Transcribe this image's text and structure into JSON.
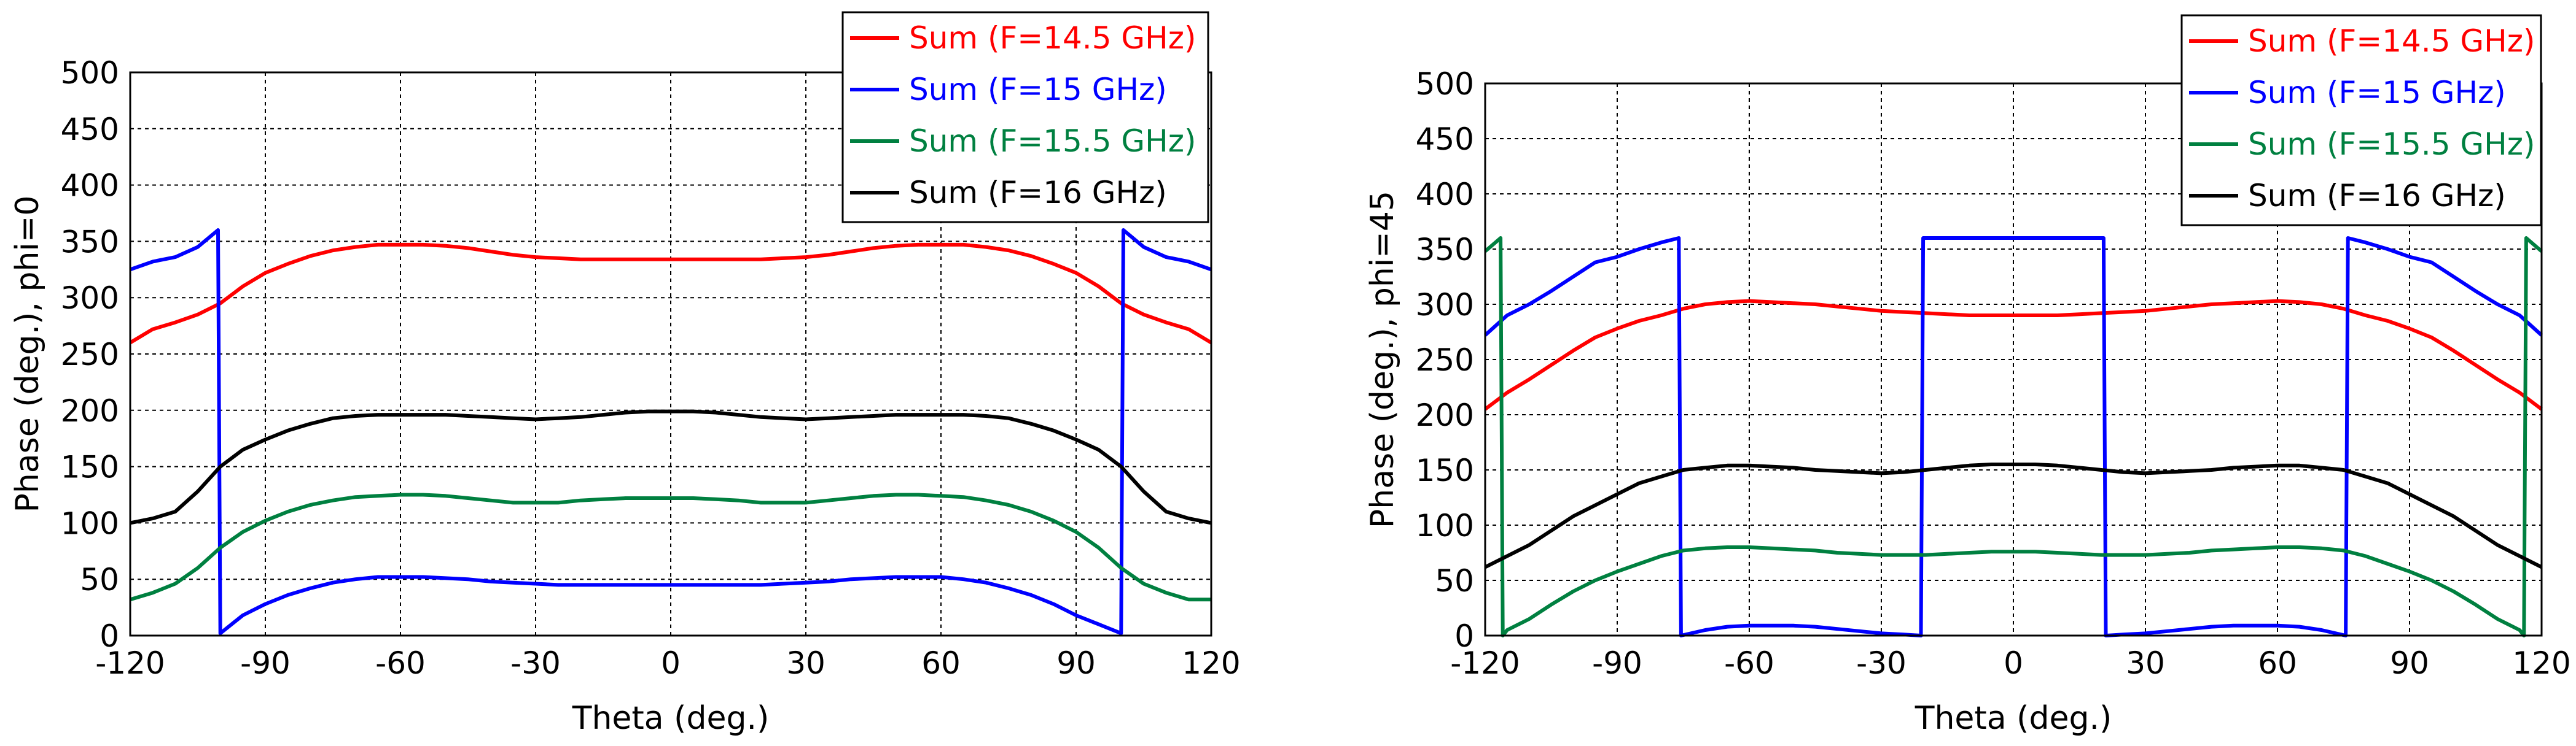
{
  "chart_data": [
    {
      "type": "line",
      "xlabel": "Theta (deg.)",
      "ylabel": "Phase (deg.), phi=0",
      "xlim": [
        -120,
        120
      ],
      "ylim": [
        0,
        500
      ],
      "xticks": [
        -120,
        -90,
        -60,
        -30,
        0,
        30,
        60,
        90,
        120
      ],
      "yticks": [
        0,
        50,
        100,
        150,
        200,
        250,
        300,
        350,
        400,
        450,
        500
      ],
      "grid": true,
      "legend_position": "top-right",
      "series": [
        {
          "name": "Sum (F=14.5 GHz)",
          "color": "#ff0000",
          "x": [
            -120,
            -115,
            -110,
            -105,
            -100,
            -95,
            -90,
            -85,
            -80,
            -75,
            -70,
            -65,
            -60,
            -55,
            -50,
            -45,
            -40,
            -35,
            -30,
            -25,
            -20,
            -15,
            -10,
            -5,
            0,
            5,
            10,
            15,
            20,
            25,
            30,
            35,
            40,
            45,
            50,
            55,
            60,
            65,
            70,
            75,
            80,
            85,
            90,
            95,
            100,
            105,
            110,
            115,
            120
          ],
          "y": [
            260,
            272,
            278,
            285,
            295,
            310,
            322,
            330,
            337,
            342,
            345,
            347,
            347,
            347,
            346,
            344,
            341,
            338,
            336,
            335,
            334,
            334,
            334,
            334,
            334,
            334,
            334,
            334,
            334,
            335,
            336,
            338,
            341,
            344,
            346,
            347,
            347,
            347,
            345,
            342,
            337,
            330,
            322,
            310,
            295,
            285,
            278,
            272,
            260
          ]
        },
        {
          "name": "Sum (F=15 GHz)",
          "color": "#0000ff",
          "x": [
            -120,
            -115,
            -110,
            -105,
            -100.5,
            -100,
            -95,
            -90,
            -85,
            -80,
            -75,
            -70,
            -65,
            -60,
            -55,
            -50,
            -45,
            -40,
            -35,
            -30,
            -25,
            -20,
            -15,
            -10,
            -5,
            0,
            5,
            10,
            15,
            20,
            25,
            30,
            35,
            40,
            45,
            50,
            55,
            60,
            65,
            70,
            75,
            80,
            85,
            90,
            95,
            100,
            100.5,
            105,
            110,
            115,
            120
          ],
          "y": [
            325,
            332,
            336,
            345,
            360,
            2,
            18,
            28,
            36,
            42,
            47,
            50,
            52,
            52,
            52,
            51,
            50,
            48,
            47,
            46,
            45,
            45,
            45,
            45,
            45,
            45,
            45,
            45,
            45,
            45,
            46,
            47,
            48,
            50,
            51,
            52,
            52,
            52,
            50,
            47,
            42,
            36,
            28,
            18,
            10,
            2,
            360,
            345,
            336,
            332,
            325
          ]
        },
        {
          "name": "Sum (F=15.5 GHz)",
          "color": "#008040",
          "x": [
            -120,
            -115,
            -110,
            -105,
            -100,
            -95,
            -90,
            -85,
            -80,
            -75,
            -70,
            -65,
            -60,
            -55,
            -50,
            -45,
            -40,
            -35,
            -30,
            -25,
            -20,
            -15,
            -10,
            -5,
            0,
            5,
            10,
            15,
            20,
            25,
            30,
            35,
            40,
            45,
            50,
            55,
            60,
            65,
            70,
            75,
            80,
            85,
            90,
            95,
            100,
            105,
            110,
            115,
            120
          ],
          "y": [
            32,
            38,
            46,
            60,
            78,
            92,
            102,
            110,
            116,
            120,
            123,
            124,
            125,
            125,
            124,
            122,
            120,
            118,
            118,
            118,
            120,
            121,
            122,
            122,
            122,
            122,
            121,
            120,
            118,
            118,
            118,
            120,
            122,
            124,
            125,
            125,
            124,
            123,
            120,
            116,
            110,
            102,
            92,
            78,
            60,
            46,
            38,
            32,
            32
          ]
        },
        {
          "name": "Sum (F=16 GHz)",
          "color": "#000000",
          "x": [
            -120,
            -115,
            -110,
            -105,
            -100,
            -95,
            -90,
            -85,
            -80,
            -75,
            -70,
            -65,
            -60,
            -55,
            -50,
            -45,
            -40,
            -35,
            -30,
            -25,
            -20,
            -15,
            -10,
            -5,
            0,
            5,
            10,
            15,
            20,
            25,
            30,
            35,
            40,
            45,
            50,
            55,
            60,
            65,
            70,
            75,
            80,
            85,
            90,
            95,
            100,
            105,
            110,
            115,
            120
          ],
          "y": [
            100,
            104,
            110,
            128,
            150,
            165,
            174,
            182,
            188,
            193,
            195,
            196,
            196,
            196,
            196,
            195,
            194,
            193,
            192,
            193,
            194,
            196,
            198,
            199,
            199,
            199,
            198,
            196,
            194,
            193,
            192,
            193,
            194,
            195,
            196,
            196,
            196,
            196,
            195,
            193,
            188,
            182,
            174,
            165,
            150,
            128,
            110,
            104,
            100
          ]
        }
      ]
    },
    {
      "type": "line",
      "xlabel": "Theta (deg.)",
      "ylabel": "Phase (deg.), phi=45",
      "xlim": [
        -120,
        120
      ],
      "ylim": [
        0,
        500
      ],
      "xticks": [
        -120,
        -90,
        -60,
        -30,
        0,
        30,
        60,
        90,
        120
      ],
      "yticks": [
        0,
        50,
        100,
        150,
        200,
        250,
        300,
        350,
        400,
        450,
        500
      ],
      "grid": true,
      "legend_position": "top-right",
      "series": [
        {
          "name": "Sum (F=14.5 GHz)",
          "color": "#ff0000",
          "x": [
            -120,
            -115,
            -110,
            -105,
            -100,
            -95,
            -90,
            -85,
            -80,
            -75,
            -70,
            -65,
            -60,
            -55,
            -50,
            -45,
            -40,
            -35,
            -30,
            -25,
            -20,
            -15,
            -10,
            -5,
            0,
            5,
            10,
            15,
            20,
            25,
            30,
            35,
            40,
            45,
            50,
            55,
            60,
            65,
            70,
            75,
            80,
            85,
            90,
            95,
            100,
            105,
            110,
            115,
            120
          ],
          "y": [
            205,
            220,
            232,
            245,
            258,
            270,
            278,
            285,
            290,
            296,
            300,
            302,
            303,
            302,
            301,
            300,
            298,
            296,
            294,
            293,
            292,
            291,
            290,
            290,
            290,
            290,
            290,
            291,
            292,
            293,
            294,
            296,
            298,
            300,
            301,
            302,
            303,
            302,
            300,
            296,
            290,
            285,
            278,
            270,
            258,
            245,
            232,
            220,
            205
          ]
        },
        {
          "name": "Sum (F=15 GHz)",
          "color": "#0000ff",
          "x": [
            -120,
            -115,
            -110,
            -105,
            -100,
            -95,
            -90,
            -85,
            -80,
            -76,
            -75.5,
            -70,
            -65,
            -60,
            -55,
            -50,
            -45,
            -40,
            -35,
            -30,
            -25,
            -21,
            -20.5,
            -15,
            -10,
            -5,
            0,
            5,
            10,
            15,
            20.5,
            21,
            25,
            30,
            35,
            40,
            45,
            50,
            55,
            60,
            65,
            70,
            75.5,
            76,
            80,
            85,
            90,
            95,
            100,
            105,
            110,
            115,
            120
          ],
          "y": [
            272,
            290,
            300,
            312,
            325,
            338,
            343,
            350,
            356,
            360,
            0,
            5,
            8,
            9,
            9,
            9,
            8,
            6,
            4,
            2,
            1,
            0,
            360,
            360,
            360,
            360,
            360,
            360,
            360,
            360,
            360,
            0,
            1,
            2,
            4,
            6,
            8,
            9,
            9,
            9,
            8,
            5,
            0,
            360,
            356,
            350,
            343,
            338,
            325,
            312,
            300,
            290,
            272
          ]
        },
        {
          "name": "Sum (F=15.5 GHz)",
          "color": "#008040",
          "x": [
            -120,
            -116.5,
            -116,
            -115,
            -110,
            -105,
            -100,
            -95,
            -90,
            -85,
            -80,
            -75,
            -70,
            -65,
            -60,
            -55,
            -50,
            -45,
            -40,
            -35,
            -30,
            -25,
            -20,
            -15,
            -10,
            -5,
            0,
            5,
            10,
            15,
            20,
            25,
            30,
            35,
            40,
            45,
            50,
            55,
            60,
            65,
            70,
            75,
            80,
            85,
            90,
            95,
            100,
            105,
            110,
            115,
            116,
            116.5,
            120
          ],
          "y": [
            348,
            360,
            0,
            5,
            15,
            28,
            40,
            50,
            58,
            65,
            72,
            77,
            79,
            80,
            80,
            79,
            78,
            77,
            75,
            74,
            73,
            73,
            73,
            74,
            75,
            76,
            76,
            76,
            75,
            74,
            73,
            73,
            73,
            74,
            75,
            77,
            78,
            79,
            80,
            80,
            79,
            77,
            72,
            65,
            58,
            50,
            40,
            28,
            15,
            5,
            0,
            360,
            348
          ]
        },
        {
          "name": "Sum (F=16 GHz)",
          "color": "#000000",
          "x": [
            -120,
            -115,
            -110,
            -105,
            -100,
            -95,
            -90,
            -85,
            -80,
            -75,
            -70,
            -65,
            -60,
            -55,
            -50,
            -45,
            -40,
            -35,
            -30,
            -25,
            -20,
            -15,
            -10,
            -5,
            0,
            5,
            10,
            15,
            20,
            25,
            30,
            35,
            40,
            45,
            50,
            55,
            60,
            65,
            70,
            75,
            80,
            85,
            90,
            95,
            100,
            105,
            110,
            115,
            120
          ],
          "y": [
            62,
            72,
            82,
            95,
            108,
            118,
            128,
            138,
            144,
            150,
            152,
            154,
            154,
            153,
            152,
            150,
            149,
            148,
            147,
            148,
            150,
            152,
            154,
            155,
            155,
            155,
            154,
            152,
            150,
            148,
            147,
            148,
            149,
            150,
            152,
            153,
            154,
            154,
            152,
            150,
            144,
            138,
            128,
            118,
            108,
            95,
            82,
            72,
            62
          ]
        }
      ]
    }
  ]
}
